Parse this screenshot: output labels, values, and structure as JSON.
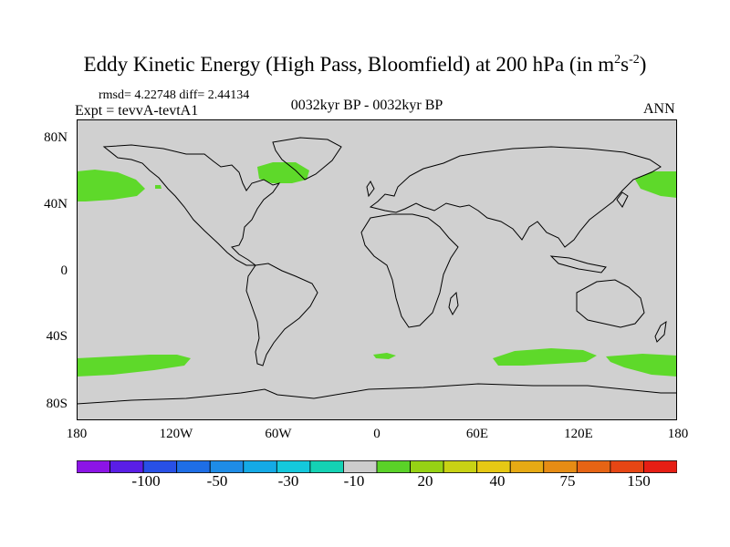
{
  "title_main": "Eddy Kinetic Energy (High Pass, Bloomfield) at 200 hPa (in m",
  "title_sup1": "2",
  "title_mid": "s",
  "title_sup2": "-2",
  "title_end": ")",
  "stats": "rmsd= 4.22748 diff= 2.44134",
  "expt": "Expt = tevvA-tevtA1",
  "period": "0032kyr BP - 0032kyr BP",
  "season": "ANN",
  "lat_labels": [
    "80N",
    "40N",
    "0",
    "40S",
    "80S"
  ],
  "lon_labels": [
    "180",
    "120W",
    "60W",
    "0",
    "60E",
    "120E",
    "180"
  ],
  "colorbar": {
    "colors": [
      "#8c14e6",
      "#5a1ee6",
      "#2850e6",
      "#1e6ee6",
      "#1e8ce6",
      "#14aae6",
      "#14c8dc",
      "#14d2b4",
      "#cccccc",
      "#5ad228",
      "#96d214",
      "#c8d214",
      "#e6c814",
      "#e6aa14",
      "#e68c14",
      "#e66414",
      "#e64614",
      "#e61e14"
    ],
    "labels": [
      "-100",
      "-50",
      "-30",
      "-10",
      "20",
      "40",
      "75",
      "150"
    ]
  },
  "map_colors": {
    "land_background": "#d0d0d0",
    "positive": "#5ed92a",
    "coast": "#000000"
  }
}
